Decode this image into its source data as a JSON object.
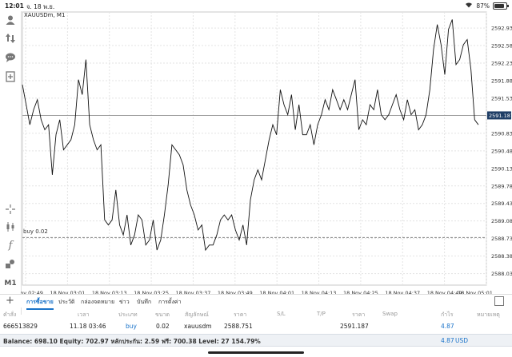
{
  "status": {
    "time": "12:01",
    "date": "จ. 18 พ.ย.",
    "battery": "87%"
  },
  "chart": {
    "symbol_title": "XAUUSDm, M1",
    "current_price": "2591.187",
    "buy_line_label": "buy 0.02"
  },
  "chart_data": {
    "type": "line",
    "ylim": [
      2587.8,
      2593.25
    ],
    "price_ticks": [
      "2592.930",
      "2592.580",
      "2592.230",
      "2591.880",
      "2591.530",
      "2591.187",
      "2590.830",
      "2590.480",
      "2590.130",
      "2589.780",
      "2589.430",
      "2589.080",
      "2588.730",
      "2588.380",
      "2588.030"
    ],
    "time_labels": [
      "18 Nov 02:49",
      "18 Nov 03:01",
      "18 Nov 03:13",
      "18 Nov 03:25",
      "18 Nov 03:37",
      "18 Nov 03:49",
      "18 Nov 04:01",
      "18 Nov 04:13",
      "18 Nov 04:25",
      "18 Nov 04:37",
      "18 Nov 04:49",
      "18 Nov 05:01"
    ],
    "x_minutes": [
      0,
      1,
      2,
      3,
      4,
      5,
      6,
      7,
      8,
      9,
      10,
      11,
      12,
      13,
      14,
      15,
      16,
      17,
      18,
      19,
      20,
      21,
      22,
      23,
      24,
      25,
      26,
      27,
      28,
      29,
      30,
      31,
      32,
      33,
      34,
      35,
      36,
      37,
      38,
      39,
      40,
      41,
      42,
      43,
      44,
      45,
      46,
      47,
      48,
      49,
      50,
      51,
      52,
      53,
      54,
      55,
      56,
      57,
      58,
      59,
      60,
      61,
      62,
      63,
      64,
      65,
      66,
      67,
      68,
      69,
      70,
      71,
      72,
      73,
      74,
      75,
      76,
      77,
      78,
      79,
      80,
      81,
      82,
      83,
      84,
      85,
      86,
      87,
      88,
      89,
      90,
      91,
      92,
      93,
      94,
      95,
      96,
      97,
      98,
      99,
      100,
      101,
      102,
      103,
      104,
      105,
      106,
      107,
      108,
      109,
      110,
      111,
      112,
      113,
      114,
      115,
      116,
      117,
      118,
      119,
      120,
      121,
      122,
      123,
      124,
      125,
      126,
      127,
      128,
      129,
      130,
      131,
      132,
      133
    ],
    "values": [
      2591.8,
      2591.4,
      2591.0,
      2591.3,
      2591.5,
      2591.1,
      2590.9,
      2591.0,
      2590.0,
      2590.8,
      2591.1,
      2590.5,
      2590.6,
      2590.7,
      2591.0,
      2591.9,
      2591.6,
      2592.3,
      2591.0,
      2590.7,
      2590.5,
      2590.6,
      2589.1,
      2589.0,
      2589.1,
      2589.7,
      2589.0,
      2588.8,
      2589.2,
      2588.6,
      2588.8,
      2589.2,
      2589.1,
      2588.6,
      2588.7,
      2589.1,
      2588.5,
      2588.7,
      2589.2,
      2589.8,
      2590.6,
      2590.5,
      2590.4,
      2590.2,
      2589.7,
      2589.4,
      2589.2,
      2588.9,
      2589.0,
      2588.5,
      2588.6,
      2588.6,
      2588.8,
      2589.1,
      2589.2,
      2589.1,
      2589.2,
      2588.9,
      2588.7,
      2589.0,
      2588.6,
      2589.5,
      2589.9,
      2590.1,
      2589.9,
      2590.3,
      2590.7,
      2591.0,
      2590.8,
      2591.7,
      2591.4,
      2591.2,
      2591.6,
      2590.9,
      2591.4,
      2590.8,
      2590.8,
      2591.0,
      2590.6,
      2591.0,
      2591.2,
      2591.5,
      2591.3,
      2591.7,
      2591.5,
      2591.3,
      2591.5,
      2591.3,
      2591.6,
      2591.9,
      2590.9,
      2591.1,
      2591.0,
      2591.4,
      2591.3,
      2591.7,
      2591.2,
      2591.1,
      2591.2,
      2591.4,
      2591.6,
      2591.3,
      2591.1,
      2591.5,
      2591.2,
      2591.3,
      2590.9,
      2591.0,
      2591.2,
      2591.7,
      2592.5,
      2593.0,
      2592.6,
      2592.0,
      2592.9,
      2593.1,
      2592.2,
      2592.3,
      2592.6,
      2592.7,
      2592.1,
      2591.1,
      2591.0,
      2590.9,
      2590.9,
      2590.9,
      2590.9,
      2590.9,
      2590.9,
      2590.9,
      2590.9,
      2590.9,
      2590.9,
      2590.9
    ],
    "points_used": 123
  },
  "toolbar": {
    "timeframe": "M1"
  },
  "tabs": [
    "การซื้อขาย",
    "ประวัติ",
    "กล่องจดหมาย",
    "ข่าว",
    "บันทึก",
    "การตั้งค่า"
  ],
  "table": {
    "headers": [
      "คำสั่ง",
      "เวลา",
      "ประเภท",
      "ขนาด",
      "สัญลักษณ์",
      "ราคา",
      "S/L",
      "T/P",
      "ราคา",
      "Swap",
      "กำไร",
      "หมายเหตุ"
    ],
    "row": {
      "order": "666513829",
      "time": "11.18 03:46",
      "type": "buy",
      "size": "0.02",
      "symbol": "xauusdm",
      "price": "2588.751",
      "sl": "",
      "tp": "",
      "current_price": "2591.187",
      "swap": "",
      "profit": "4.87",
      "comment": ""
    }
  },
  "balance": {
    "text": "Balance: 698.10 Equity: 702.97 หลักประกัน: 2.59 ฟรี: 700.38 Level: 27 154.79%",
    "total_profit": "4.87",
    "currency": "USD"
  }
}
